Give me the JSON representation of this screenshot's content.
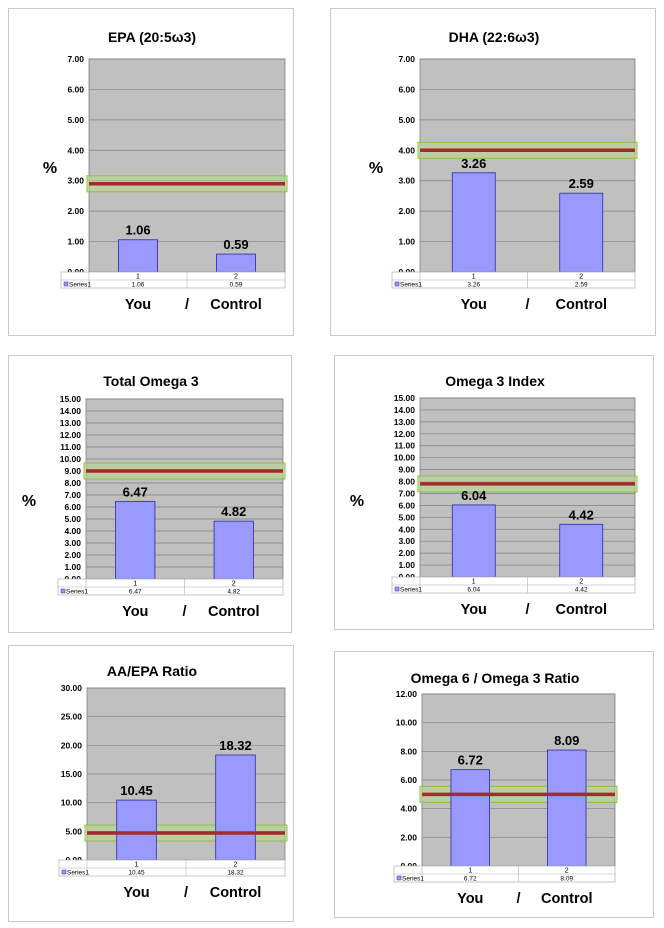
{
  "chart_data": [
    {
      "type": "bar",
      "title": "EPA (20:5ω3)",
      "ylabel": "%",
      "ylim": [
        0,
        7
      ],
      "ytick_step": 1,
      "ytick_labels": [
        "0.00",
        "1.00",
        "2.00",
        "3.00",
        "4.00",
        "5.00",
        "6.00",
        "7.00"
      ],
      "categories": [
        "1",
        "2"
      ],
      "series": [
        {
          "name": "Series1",
          "values": [
            1.06,
            0.59
          ],
          "labels": [
            "1.06",
            "0.59"
          ]
        }
      ],
      "reference_line": 2.9,
      "footer_left": "You",
      "footer_sep": "/",
      "footer_right": "Control"
    },
    {
      "type": "bar",
      "title": "DHA (22:6ω3)",
      "ylabel": "%",
      "ylim": [
        0,
        7
      ],
      "ytick_step": 1,
      "ytick_labels": [
        "0.00",
        "1.00",
        "2.00",
        "3.00",
        "4.00",
        "5.00",
        "6.00",
        "7.00"
      ],
      "categories": [
        "1",
        "2"
      ],
      "series": [
        {
          "name": "Series1",
          "values": [
            3.26,
            2.59
          ],
          "labels": [
            "3.26",
            "2.59"
          ]
        }
      ],
      "reference_line": 4.0,
      "footer_left": "You",
      "footer_sep": "/",
      "footer_right": "Control"
    },
    {
      "type": "bar",
      "title": "Total Omega 3",
      "ylabel": "%",
      "ylim": [
        0,
        15
      ],
      "ytick_step": 1,
      "ytick_labels": [
        "0.00",
        "1.00",
        "2.00",
        "3.00",
        "4.00",
        "5.00",
        "6.00",
        "7.00",
        "8.00",
        "9.00",
        "10.00",
        "11.00",
        "12.00",
        "13.00",
        "14.00",
        "15.00"
      ],
      "categories": [
        "1",
        "2"
      ],
      "series": [
        {
          "name": "Series1",
          "values": [
            6.47,
            4.82
          ],
          "labels": [
            "6.47",
            "4.82"
          ]
        }
      ],
      "reference_line": 9.0,
      "footer_left": "You",
      "footer_sep": "/",
      "footer_right": "Control"
    },
    {
      "type": "bar",
      "title": "Omega 3 Index",
      "ylabel": "%",
      "ylim": [
        0,
        15
      ],
      "ytick_step": 1,
      "ytick_labels": [
        "0.00",
        "1.00",
        "2.00",
        "3.00",
        "4.00",
        "5.00",
        "6.00",
        "7.00",
        "8.00",
        "9.00",
        "10.00",
        "11.00",
        "12.00",
        "13.00",
        "14.00",
        "15.00"
      ],
      "categories": [
        "1",
        "2"
      ],
      "series": [
        {
          "name": "Series1",
          "values": [
            6.04,
            4.42
          ],
          "labels": [
            "6.04",
            "4.42"
          ]
        }
      ],
      "reference_line": 7.8,
      "footer_left": "You",
      "footer_sep": "/",
      "footer_right": "Control"
    },
    {
      "type": "bar",
      "title": "AA/EPA Ratio",
      "ylabel": "",
      "ylim": [
        0,
        30
      ],
      "ytick_step": 5,
      "ytick_labels": [
        "0.00",
        "5.00",
        "10.00",
        "15.00",
        "20.00",
        "25.00",
        "30.00"
      ],
      "categories": [
        "1",
        "2"
      ],
      "series": [
        {
          "name": "Series1",
          "values": [
            10.45,
            18.32
          ],
          "labels": [
            "10.45",
            "18.32"
          ]
        }
      ],
      "reference_line": 4.7,
      "footer_left": "You",
      "footer_sep": "/",
      "footer_right": "Control"
    },
    {
      "type": "bar",
      "title": "Omega 6 / Omega 3 Ratio",
      "ylabel": "",
      "ylim": [
        0,
        12
      ],
      "ytick_step": 2,
      "ytick_labels": [
        "0.00",
        "2.00",
        "4.00",
        "6.00",
        "8.00",
        "10.00",
        "12.00"
      ],
      "categories": [
        "1",
        "2"
      ],
      "series": [
        {
          "name": "Series1",
          "values": [
            6.72,
            8.09
          ],
          "labels": [
            "6.72",
            "8.09"
          ]
        }
      ],
      "reference_line": 5.0,
      "footer_left": "You",
      "footer_sep": "/",
      "footer_right": "Control"
    }
  ],
  "colors": {
    "plot_bg": "#c0c0c0",
    "bar_fill": "#9999ff",
    "bar_stroke": "#2b2b9e",
    "gridline": "#808080",
    "ref_line": "#a52a2a",
    "ref_band": "#b8d88a",
    "ref_band_edge": "#8fbf3a"
  }
}
